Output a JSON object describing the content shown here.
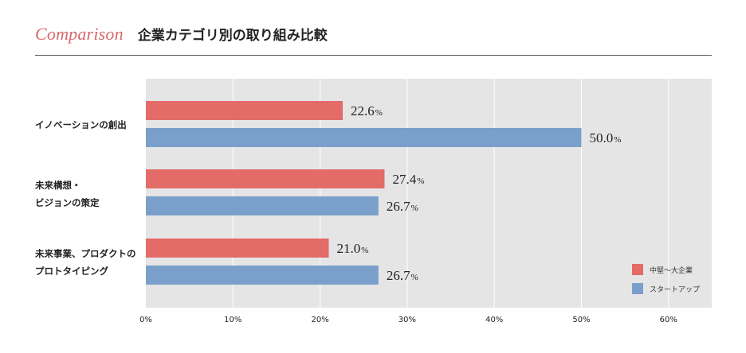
{
  "header": {
    "title_en": "Comparison",
    "title_jp": "企業カテゴリ別の取り組み比較"
  },
  "chart_data": {
    "type": "bar",
    "orientation": "horizontal",
    "title": "企業カテゴリ別の取り組み比較",
    "categories": [
      [
        "イノベーションの創出"
      ],
      [
        "未来構想・",
        "ビジョンの策定"
      ],
      [
        "未来事業、プロダクトの",
        "プロトタイピング"
      ]
    ],
    "series": [
      {
        "name": "中堅〜大企業",
        "color": "#e36b68",
        "values": [
          22.6,
          27.4,
          21.0
        ],
        "labels": [
          "22.6",
          "27.4",
          "21.0"
        ]
      },
      {
        "name": "スタートアップ",
        "color": "#7a9fca",
        "values": [
          50.0,
          26.7,
          26.7
        ],
        "labels": [
          "50.0",
          "26.7",
          "26.7"
        ]
      }
    ],
    "value_suffix": "%",
    "xlim": [
      0,
      65
    ],
    "xticks": [
      0,
      10,
      20,
      30,
      40,
      50,
      60
    ],
    "xtick_labels": [
      "0%",
      "10%",
      "20%",
      "30%",
      "40%",
      "50%",
      "60%"
    ],
    "grid": true,
    "legend_position": "bottom-right",
    "plot_background": "#e5e5e5"
  }
}
